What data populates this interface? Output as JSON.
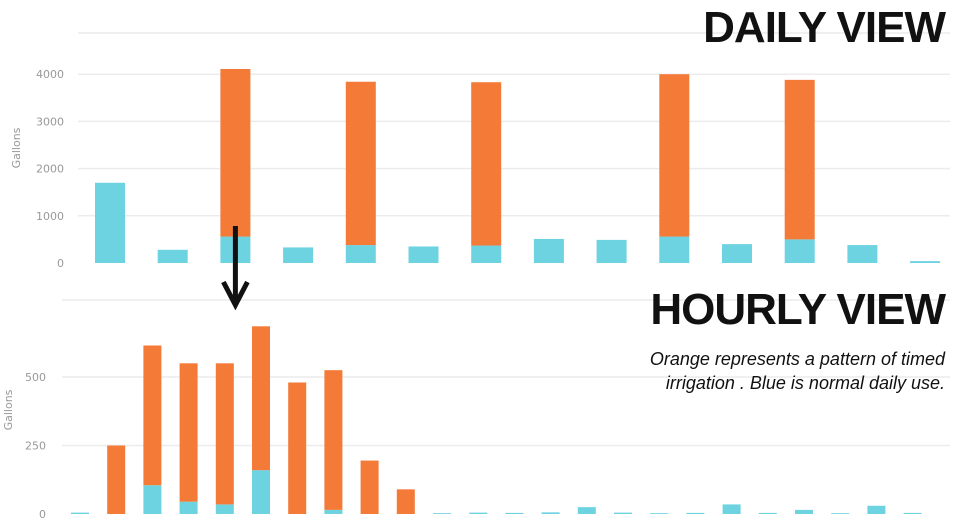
{
  "titles": {
    "daily": "DAILY VIEW",
    "hourly": "HOURLY VIEW"
  },
  "note": {
    "line1": "Orange represents a pattern of timed",
    "line2": "irrigation . Blue is normal daily use."
  },
  "colors": {
    "blue": "#6dd3e0",
    "orange": "#f47a38",
    "arrow": "#111111"
  },
  "chart_data": [
    {
      "type": "bar",
      "stacked": true,
      "ylabel": "Gallons",
      "ylim": [
        0,
        4500
      ],
      "yticks": [
        0,
        1000,
        2000,
        3000,
        4000
      ],
      "grid": true,
      "series": [
        {
          "color": "#6dd3e0",
          "values": [
            1700,
            280,
            560,
            330,
            380,
            350,
            370,
            510,
            490,
            560,
            400,
            500,
            380,
            40
          ]
        },
        {
          "color": "#f47a38",
          "values": [
            0,
            0,
            3550,
            0,
            3460,
            0,
            3460,
            0,
            0,
            3440,
            0,
            3380,
            0,
            0
          ]
        }
      ]
    },
    {
      "type": "bar",
      "stacked": true,
      "ylabel": "Gallons",
      "ylim": [
        0,
        700
      ],
      "yticks": [
        0,
        250,
        500
      ],
      "grid": true,
      "series": [
        {
          "color": "#6dd3e0",
          "values": [
            5,
            0,
            105,
            45,
            35,
            160,
            0,
            15,
            0,
            0,
            3,
            5,
            4,
            6,
            25,
            5,
            3,
            4,
            35,
            4,
            15,
            3,
            30,
            4
          ]
        },
        {
          "color": "#f47a38",
          "values": [
            0,
            250,
            510,
            505,
            515,
            525,
            480,
            510,
            195,
            90,
            0,
            0,
            0,
            0,
            0,
            0,
            0,
            0,
            0,
            0,
            0,
            0,
            0,
            0
          ]
        }
      ]
    }
  ]
}
